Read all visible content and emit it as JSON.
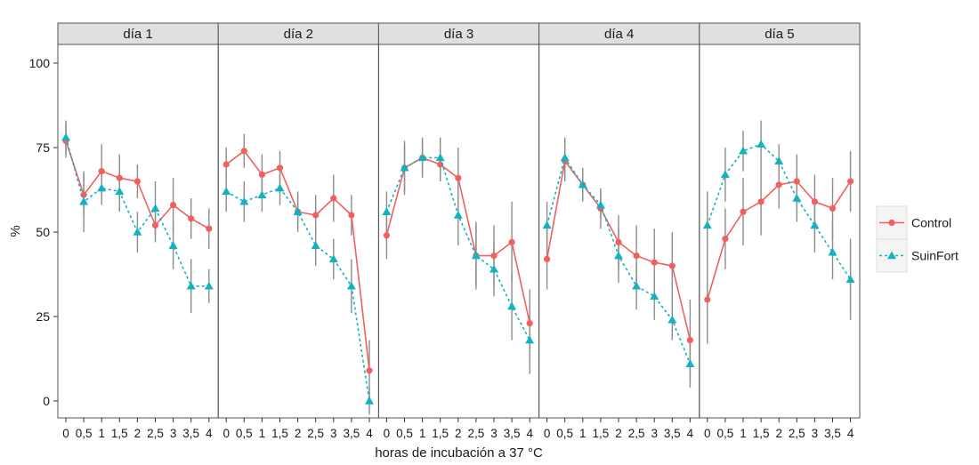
{
  "chart_data": {
    "type": "line",
    "facets": [
      "día 1",
      "día 2",
      "día 3",
      "día 4",
      "día 5"
    ],
    "x_ticks": [
      "0",
      "0,5",
      "1",
      "1,5",
      "2",
      "2,5",
      "3",
      "3,5",
      "4"
    ],
    "x_values": [
      0,
      0.5,
      1,
      1.5,
      2,
      2.5,
      3,
      3.5,
      4
    ],
    "xlabel": "horas de incubación a 37 °C",
    "ylabel": "%",
    "ylim": [
      0,
      100
    ],
    "y_ticks": [
      0,
      25,
      50,
      75,
      100
    ],
    "grid": false,
    "legend": {
      "placement": "right",
      "entries": [
        {
          "name": "Control",
          "marker": "circle",
          "line": "solid",
          "color": "#F0615E"
        },
        {
          "name": "SuinFort",
          "marker": "triangle",
          "line": "dotted",
          "color": "#12B3BF"
        }
      ]
    },
    "series": [
      {
        "name": "Control",
        "panels": [
          {
            "values": [
              77,
              61,
              68,
              66,
              65,
              52,
              58,
              54,
              51
            ],
            "err": [
              5,
              6,
              8,
              7,
              5,
              5,
              8,
              6,
              6
            ]
          },
          {
            "values": [
              70,
              74,
              67,
              69,
              56,
              55,
              60,
              55,
              9
            ],
            "err": [
              5,
              5,
              6,
              5,
              5,
              6,
              7,
              6,
              9
            ]
          },
          {
            "values": [
              49,
              69,
              72,
              70,
              66,
              43,
              43,
              47,
              23
            ],
            "err": [
              7,
              7,
              5,
              5,
              9,
              10,
              9,
              12,
              10
            ]
          },
          {
            "values": [
              42,
              71,
              64,
              57,
              47,
              43,
              41,
              40,
              18
            ],
            "err": [
              9,
              6,
              5,
              6,
              8,
              9,
              10,
              10,
              12
            ]
          },
          {
            "values": [
              30,
              48,
              56,
              59,
              64,
              65,
              59,
              57,
              65
            ],
            "err": [
              13,
              9,
              10,
              10,
              7,
              8,
              8,
              9,
              9
            ]
          }
        ]
      },
      {
        "name": "SuinFort",
        "panels": [
          {
            "values": [
              78,
              59,
              63,
              62,
              50,
              57,
              46,
              34,
              34
            ],
            "err": [
              5,
              9,
              5,
              6,
              6,
              8,
              7,
              8,
              5
            ]
          },
          {
            "values": [
              62,
              59,
              61,
              63,
              56,
              46,
              42,
              34,
              0
            ],
            "err": [
              6,
              6,
              5,
              5,
              6,
              6,
              6,
              8,
              4
            ]
          },
          {
            "values": [
              56,
              69,
              72,
              72,
              55,
              43,
              39,
              28,
              18
            ],
            "err": [
              6,
              8,
              6,
              6,
              9,
              9,
              8,
              10,
              10
            ]
          },
          {
            "values": [
              52,
              72,
              64,
              58,
              43,
              34,
              31,
              24,
              11
            ],
            "err": [
              7,
              6,
              4,
              4,
              8,
              7,
              7,
              6,
              7
            ]
          },
          {
            "values": [
              52,
              67,
              74,
              76,
              71,
              60,
              52,
              44,
              36
            ],
            "err": [
              10,
              8,
              6,
              7,
              5,
              7,
              8,
              8,
              12
            ]
          }
        ]
      }
    ]
  }
}
